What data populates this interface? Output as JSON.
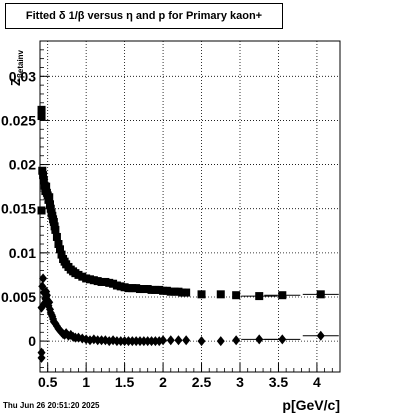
{
  "chart_data": {
    "type": "scatter",
    "title": "Fitted δ 1/β versus η and p for Primary kaon+",
    "xlabel": "p[GeV/c]",
    "ylabel_main": "Z",
    "ylabel_sub": "βetainv",
    "xlim": [
      0.4,
      4.3
    ],
    "ylim": [
      -0.0035,
      0.034
    ],
    "grid": true,
    "x_ticks": [
      0.5,
      1,
      1.5,
      2,
      2.5,
      3,
      3.5,
      4
    ],
    "x_tick_labels": [
      "0.5",
      "1",
      "1.5",
      "2",
      "2.5",
      "3",
      "3.5",
      "4"
    ],
    "y_ticks": [
      0,
      0.005,
      0.01,
      0.015,
      0.02,
      0.025,
      0.03
    ],
    "y_tick_labels": [
      "0",
      "0.005",
      "0.01",
      "0.015",
      "0.02",
      "0.025",
      "0.03"
    ],
    "series": [
      {
        "marker": "square",
        "x": [
          0.42,
          0.42,
          0.42,
          0.43,
          0.44,
          0.45,
          0.46,
          0.47,
          0.48,
          0.49,
          0.5,
          0.51,
          0.52,
          0.53,
          0.54,
          0.55,
          0.56,
          0.57,
          0.58,
          0.59,
          0.6,
          0.62,
          0.64,
          0.66,
          0.68,
          0.7,
          0.72,
          0.74,
          0.77,
          0.8,
          0.83,
          0.86,
          0.9,
          0.95,
          1.0,
          1.05,
          1.1,
          1.15,
          1.2,
          1.25,
          1.3,
          1.35,
          1.4,
          1.45,
          1.5,
          1.55,
          1.6,
          1.65,
          1.7,
          1.75,
          1.8,
          1.85,
          1.9,
          1.95,
          2.0,
          2.05,
          2.1,
          2.15,
          2.2,
          2.25,
          2.3,
          2.5,
          2.75,
          2.95,
          3.25,
          3.55,
          4.05
        ],
        "y": [
          0.0262,
          0.0255,
          0.0148,
          0.0193,
          0.0188,
          0.0182,
          0.0176,
          0.017,
          0.0175,
          0.0168,
          0.0165,
          0.016,
          0.0163,
          0.0155,
          0.015,
          0.0145,
          0.0142,
          0.0138,
          0.0135,
          0.013,
          0.0126,
          0.0118,
          0.011,
          0.0104,
          0.0098,
          0.0093,
          0.009,
          0.0087,
          0.0084,
          0.0081,
          0.0079,
          0.0077,
          0.0075,
          0.0073,
          0.0071,
          0.007,
          0.0069,
          0.0068,
          0.0067,
          0.0067,
          0.0066,
          0.0065,
          0.0063,
          0.0062,
          0.0061,
          0.006,
          0.006,
          0.006,
          0.0059,
          0.0059,
          0.0059,
          0.0058,
          0.0058,
          0.0058,
          0.0057,
          0.0057,
          0.0056,
          0.0056,
          0.0056,
          0.0055,
          0.0055,
          0.0053,
          0.0053,
          0.0052,
          0.0051,
          0.0052,
          0.0053
        ]
      },
      {
        "marker": "diamond",
        "x": [
          0.42,
          0.42,
          0.42,
          0.43,
          0.44,
          0.45,
          0.46,
          0.47,
          0.48,
          0.49,
          0.5,
          0.51,
          0.52,
          0.53,
          0.54,
          0.55,
          0.56,
          0.57,
          0.58,
          0.6,
          0.62,
          0.64,
          0.66,
          0.68,
          0.7,
          0.72,
          0.74,
          0.77,
          0.8,
          0.83,
          0.86,
          0.9,
          0.95,
          1.0,
          1.05,
          1.1,
          1.15,
          1.2,
          1.25,
          1.3,
          1.35,
          1.4,
          1.45,
          1.5,
          1.55,
          1.6,
          1.65,
          1.7,
          1.75,
          1.8,
          1.85,
          1.9,
          1.95,
          2.0,
          2.1,
          2.2,
          2.3,
          2.5,
          2.75,
          2.95,
          3.25,
          3.55,
          4.05
        ],
        "y": [
          -0.0013,
          -0.0019,
          0.0038,
          0.0062,
          0.0071,
          0.0055,
          0.0043,
          0.0048,
          0.0056,
          0.0052,
          0.0046,
          0.004,
          0.0044,
          0.0036,
          0.0032,
          0.003,
          0.0028,
          0.0025,
          0.0022,
          0.002,
          0.0017,
          0.0014,
          0.0012,
          0.001,
          0.0008,
          0.0007,
          0.0009,
          0.0006,
          0.0007,
          0.0005,
          0.0004,
          0.0004,
          0.0003,
          0.0002,
          0.0001,
          0.0002,
          0.0001,
          0.0001,
          0.0001,
          0.0,
          0.0001,
          0.0,
          0.0,
          0.0,
          0.0,
          0.0,
          0.0,
          0.0,
          0.0,
          0.0,
          0.0,
          0.0,
          0.0,
          0.0001,
          0.0001,
          0.0001,
          0.0001,
          0.0,
          0.0,
          0.0001,
          0.0002,
          0.0002,
          0.0006
        ]
      }
    ]
  },
  "footer": {
    "timestamp": "Thu Jun 26 20:51:20 2025"
  }
}
